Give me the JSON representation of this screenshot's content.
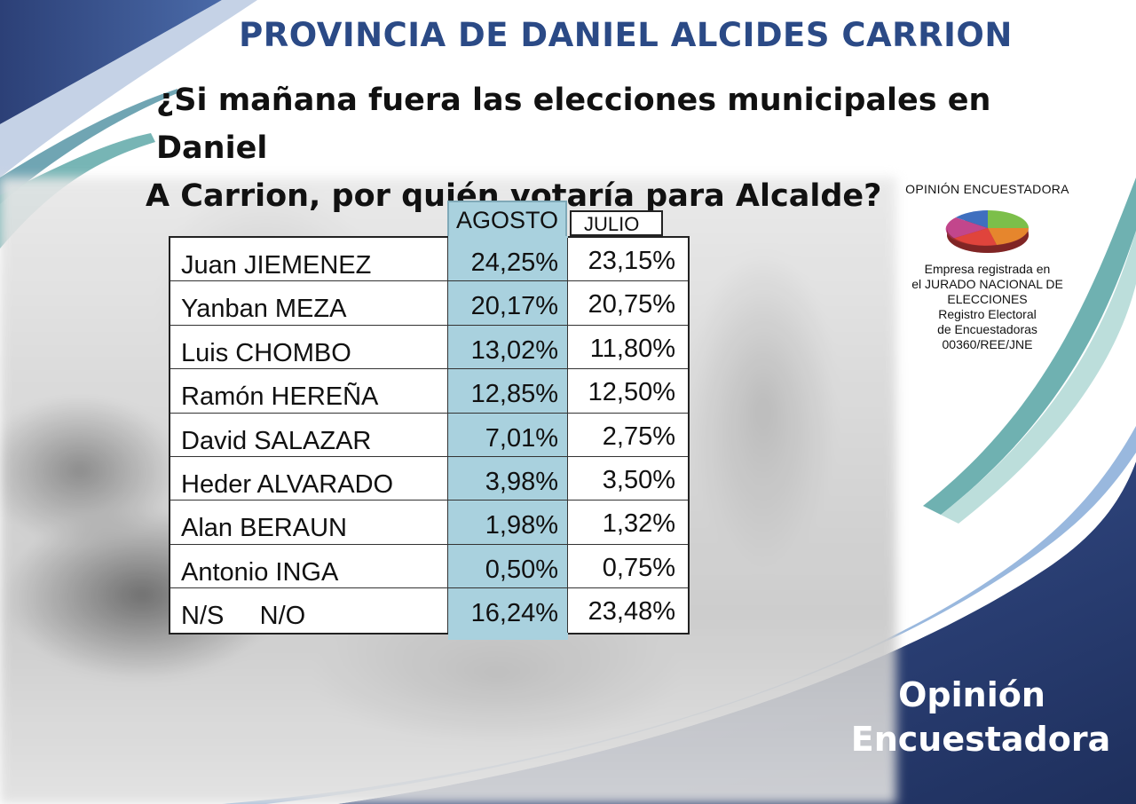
{
  "header": {
    "title": "PROVINCIA DE DANIEL ALCIDES CARRION",
    "question_line1": "¿Si  mañana fuera las elecciones municipales en Daniel",
    "question_line2": "A Carrion,  por quién votaría para Alcalde?"
  },
  "table": {
    "columns": [
      "AGOSTO",
      "JULIO"
    ],
    "rows": [
      {
        "name": "Juan JIEMENEZ",
        "agosto": "24,25%",
        "julio": "23,15%"
      },
      {
        "name": "Yanban MEZA",
        "agosto": "20,17%",
        "julio": "20,75%"
      },
      {
        "name": "Luis CHOMBO",
        "agosto": "13,02%",
        "julio": "11,80%"
      },
      {
        "name": "Ramón HEREÑA",
        "agosto": "12,85%",
        "julio": "12,50%"
      },
      {
        "name": "David SALAZAR",
        "agosto": "7,01%",
        "julio": "2,75%"
      },
      {
        "name": "Heder ALVARADO",
        "agosto": "3,98%",
        "julio": "3,50%"
      },
      {
        "name": "Alan BERAUN",
        "agosto": "1,98%",
        "julio": "1,32%"
      },
      {
        "name": "Antonio INGA",
        "agosto": "0,50%",
        "julio": "0,75%"
      },
      {
        "name": "N/S     N/O",
        "agosto": "16,24%",
        "julio": "23,48%"
      }
    ]
  },
  "logo": {
    "title": "OPINIÓN ENCUESTADORA",
    "lines": [
      "Empresa registrada en",
      "el JURADO NACIONAL DE",
      "ELECCIONES",
      "Registro Electoral",
      "de Encuestadoras",
      "00360/REE/JNE"
    ],
    "icon": "pie-chart-icon"
  },
  "brand": {
    "line1": "Opinión",
    "line2": "Encuestadora"
  },
  "colors": {
    "title_blue": "#2b4a86",
    "navy": "#263a6b",
    "teal": "#5fa8a8",
    "agosto_fill": "#a9d1de"
  }
}
